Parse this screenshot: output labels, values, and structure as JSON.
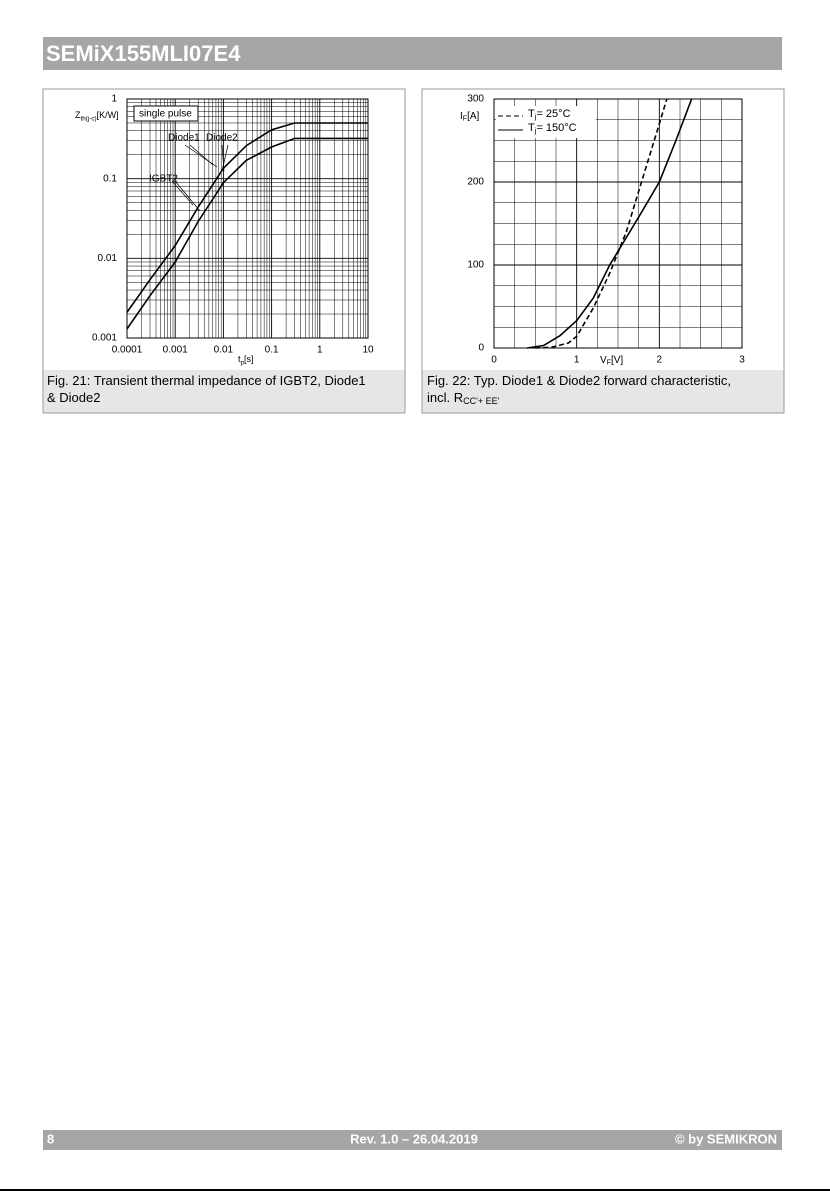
{
  "header": {
    "title": "SEMiX155MLI07E4"
  },
  "chart_data": [
    {
      "type": "line",
      "xlog": true,
      "ylog": true,
      "grid": true,
      "caption": "Fig. 21: Transient thermal impedance of IGBT2, Diode1 & Diode2",
      "ylabel": {
        "main": "Z",
        "sub": "th(j-c)",
        "rest": "[K/W]"
      },
      "xlabel": {
        "main": "t",
        "sub": "p",
        "rest": "[s]"
      },
      "xlim": [
        0.0001,
        10
      ],
      "ylim": [
        0.001,
        1
      ],
      "xticks": [
        0.0001,
        0.001,
        0.01,
        0.1,
        1,
        10
      ],
      "yticks": [
        0.001,
        0.01,
        0.1,
        1
      ],
      "annotations": [
        "single pulse",
        "Diode1",
        "Diode2",
        "IGBT2"
      ],
      "x": [
        0.0001,
        0.0003,
        0.001,
        0.003,
        0.01,
        0.03,
        0.1,
        0.3,
        1,
        10
      ],
      "series": [
        {
          "color": "#000000",
          "values": [
            0.0021,
            0.0054,
            0.0145,
            0.044,
            0.135,
            0.26,
            0.41,
            0.5,
            0.5,
            0.5
          ]
        },
        {
          "color": "#000000",
          "values": [
            0.0013,
            0.0034,
            0.009,
            0.029,
            0.089,
            0.17,
            0.25,
            0.32,
            0.32,
            0.32
          ]
        }
      ]
    },
    {
      "type": "line",
      "grid": true,
      "caption": {
        "main": "Fig. 22: Typ. Diode1 & Diode2 forward characteristic, incl. R",
        "sub": "CC'+ EE'"
      },
      "ylabel": {
        "main": "I",
        "sub": "F",
        "rest": "[A]"
      },
      "xlabel": {
        "main": "V",
        "sub": "F",
        "rest": "[V]"
      },
      "xlim": [
        0,
        3
      ],
      "ylim": [
        0,
        300
      ],
      "xticks": [
        0,
        1,
        2,
        3
      ],
      "yticks": [
        0,
        100,
        200,
        300
      ],
      "series": [
        {
          "label": {
            "main": "T",
            "sub": "j",
            "rest": "= 25°C"
          },
          "color": "#000000",
          "dash": "dashed",
          "x": [
            0.5,
            0.7,
            0.9,
            1.0,
            1.2,
            1.4,
            1.6,
            1.8,
            2.0,
            2.09
          ],
          "values": [
            0,
            1,
            6,
            14,
            48,
            90,
            140,
            205,
            270,
            300
          ]
        },
        {
          "label": {
            "main": "T",
            "sub": "j",
            "rest": "= 150°C"
          },
          "color": "#000000",
          "dash": "solid",
          "x": [
            0.4,
            0.6,
            0.8,
            1.0,
            1.2,
            1.4,
            1.6,
            1.8,
            2.0,
            2.2,
            2.39
          ],
          "values": [
            0,
            3,
            15,
            33,
            60,
            100,
            133,
            166,
            200,
            250,
            300
          ]
        }
      ]
    }
  ],
  "footer": {
    "page": "8",
    "revision": "Rev. 1.0 – 26.04.2019",
    "copyright": "© by SEMIKRON"
  }
}
